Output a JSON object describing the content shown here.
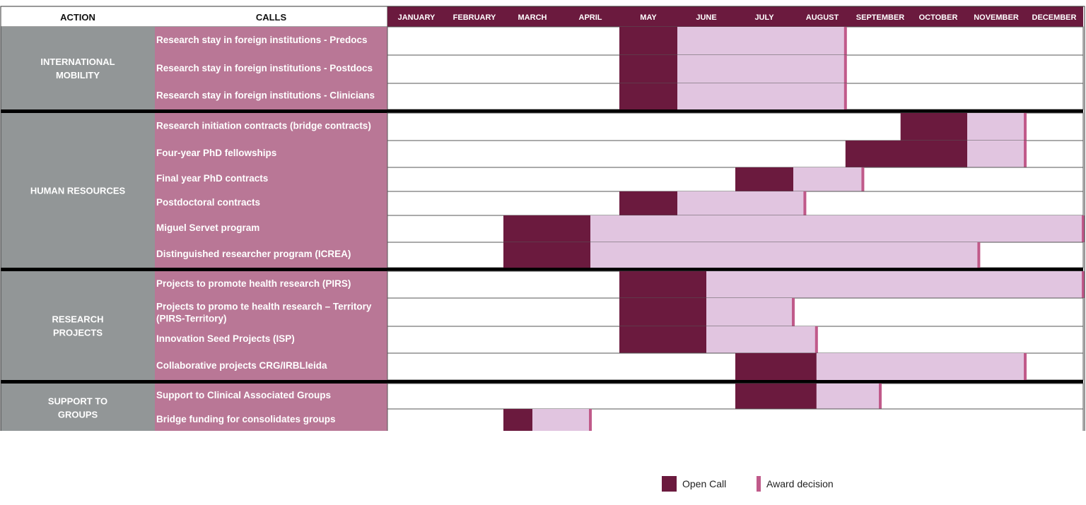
{
  "chart_data": {
    "type": "table",
    "headers": {
      "action": "ACTION",
      "calls": "CALLS"
    },
    "months": [
      "JANUARY",
      "FEBRUARY",
      "MARCH",
      "APRIL",
      "MAY",
      "JUNE",
      "JULY",
      "AUGUST",
      "SEPTEMBER",
      "OCTOBER",
      "NOVEMBER",
      "DECEMBER"
    ],
    "groups": [
      {
        "action": [
          "INTERNATIONAL",
          "MOBILITY"
        ],
        "calls": [
          {
            "name": [
              "Research stay in foreign institutions - Predocs"
            ],
            "open": [
              4.0,
              5.0
            ],
            "award": 7.9
          },
          {
            "name": [
              "Research stay in foreign institutions - Postdocs"
            ],
            "open": [
              4.0,
              5.0
            ],
            "award": 7.9
          },
          {
            "name": [
              "Research stay in foreign institutions - Clinicians"
            ],
            "open": [
              4.0,
              5.0
            ],
            "award": 7.9
          }
        ]
      },
      {
        "action": [
          "HUMAN RESOURCES"
        ],
        "calls": [
          {
            "name": [
              "Research initiation contracts (bridge contracts)"
            ],
            "open": [
              8.85,
              10.0
            ],
            "award": 11.0
          },
          {
            "name": [
              "Four-year PhD fellowships"
            ],
            "open": [
              7.9,
              10.0
            ],
            "award": 11.0
          },
          {
            "name": [
              "Final year PhD contracts"
            ],
            "open": [
              6.0,
              7.0
            ],
            "award": 8.2
          },
          {
            "name": [
              "Postdoctoral contracts"
            ],
            "open": [
              4.0,
              5.0
            ],
            "award": 7.2
          },
          {
            "name": [
              "Miguel Servet program"
            ],
            "open": [
              2.0,
              3.5
            ],
            "award": 12.0
          },
          {
            "name": [
              "Distinguished researcher program (ICREA)"
            ],
            "open": [
              2.0,
              3.5
            ],
            "award": 10.2
          }
        ]
      },
      {
        "action": [
          "RESEARCH",
          "PROJECTS"
        ],
        "calls": [
          {
            "name": [
              "Projects to promote health research (PIRS)"
            ],
            "open": [
              4.0,
              5.5
            ],
            "award": 12.0
          },
          {
            "name": [
              "Projects to promo te health research – Territory",
              "(PIRS-Territory)"
            ],
            "open": [
              4.0,
              5.5
            ],
            "award": 7.0
          },
          {
            "name": [
              "Innovation Seed Projects (ISP)"
            ],
            "open": [
              4.0,
              5.5
            ],
            "award": 7.4
          },
          {
            "name": [
              "Collaborative projects CRG/IRBLleida"
            ],
            "open": [
              6.0,
              7.4
            ],
            "award": 11.0
          }
        ]
      },
      {
        "action": [
          "SUPPORT TO",
          "GROUPS"
        ],
        "calls": [
          {
            "name": [
              "Support to Clinical Associated Groups"
            ],
            "open": [
              6.0,
              7.4
            ],
            "award": 8.5
          },
          {
            "name": [
              "Bridge funding  for consolidates groups"
            ],
            "open": [
              2.0,
              2.5
            ],
            "award": 3.5
          }
        ]
      }
    ],
    "legend": [
      {
        "label": "Open Call",
        "color": "#6b1a3e"
      },
      {
        "label": "Award decision",
        "color": "#c05a8a"
      }
    ],
    "legend_position": "bottom-right",
    "colors": {
      "header_month_bg": "#6b1a3e",
      "action_bg": "#929697",
      "calls_bg": "#b97796",
      "open_call": "#6b1a3e",
      "period": "#e1c5e0",
      "award_decision": "#c05a8a"
    }
  }
}
